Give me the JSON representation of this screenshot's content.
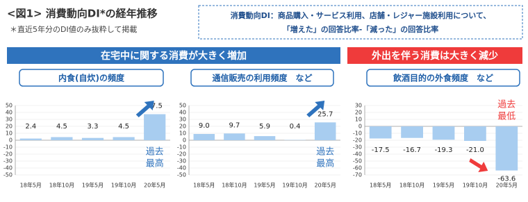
{
  "header": {
    "title": "<図1> 消費動向DI*の経年推移",
    "subtitle": "＊直近5年分のDI値のみ抜粋して掲載"
  },
  "note": {
    "lines": [
      "消費動向DI：商品購入・サービス利用、店舗・レジャー施設利用について、",
      "「増えた」の回答比率-「減った」の回答比率"
    ]
  },
  "banners": [
    {
      "text": "在宅中に関する消費が大きく増加",
      "color": "#2f73bd"
    },
    {
      "text": "外出を伴う消費は大きく減少",
      "color": "#ef3b3b"
    }
  ],
  "chart_data": [
    {
      "type": "bar",
      "title": "内食(自炊)の頻度",
      "categories": [
        "18年5月",
        "18年10月",
        "19年5月",
        "19年10月",
        "20年5月"
      ],
      "values": [
        2.4,
        4.5,
        3.3,
        4.5,
        37.5
      ],
      "color": "#a8cdf0",
      "ylim": [
        -50,
        50
      ],
      "yticks": [
        50,
        40,
        30,
        20,
        10,
        0,
        -10,
        -20,
        -30,
        -40,
        -50
      ],
      "grid": true,
      "annotation": [
        "過去",
        "最高"
      ],
      "annotation_color": "#2f73bd"
    },
    {
      "type": "bar",
      "title": "通信販売の利用頻度　など",
      "categories": [
        "18年5月",
        "18年10月",
        "19年5月",
        "19年10月",
        "20年5月"
      ],
      "values": [
        9.0,
        9.7,
        5.9,
        0.4,
        25.7
      ],
      "value_labels": [
        "9.0",
        "9.7",
        "5.9",
        "0.4",
        "25.7"
      ],
      "color": "#a8cdf0",
      "ylim": [
        -50,
        50
      ],
      "yticks": [
        50,
        40,
        30,
        20,
        10,
        0,
        -10,
        -20,
        -30,
        -40,
        -50
      ],
      "grid": true,
      "annotation": [
        "過去",
        "最高"
      ],
      "annotation_color": "#2f73bd"
    },
    {
      "type": "bar",
      "title": "飲酒目的の外食頻度　など",
      "categories": [
        "18年5月",
        "18年10月",
        "19年5月",
        "19年10月",
        "20年5月"
      ],
      "values": [
        -17.5,
        -16.7,
        -19.3,
        -21.0,
        -63.6
      ],
      "value_labels": [
        "-17.5",
        "-16.7",
        "-19.3",
        "-21.0",
        "-63.6"
      ],
      "color": "#a8cdf0",
      "ylim": [
        -70,
        30
      ],
      "yticks": [
        30,
        20,
        10,
        0,
        -10,
        -20,
        -30,
        -40,
        -50,
        -60,
        -70
      ],
      "grid": true,
      "annotation": [
        "過去",
        "最低"
      ],
      "annotation_color": "#ef3b3b"
    }
  ]
}
